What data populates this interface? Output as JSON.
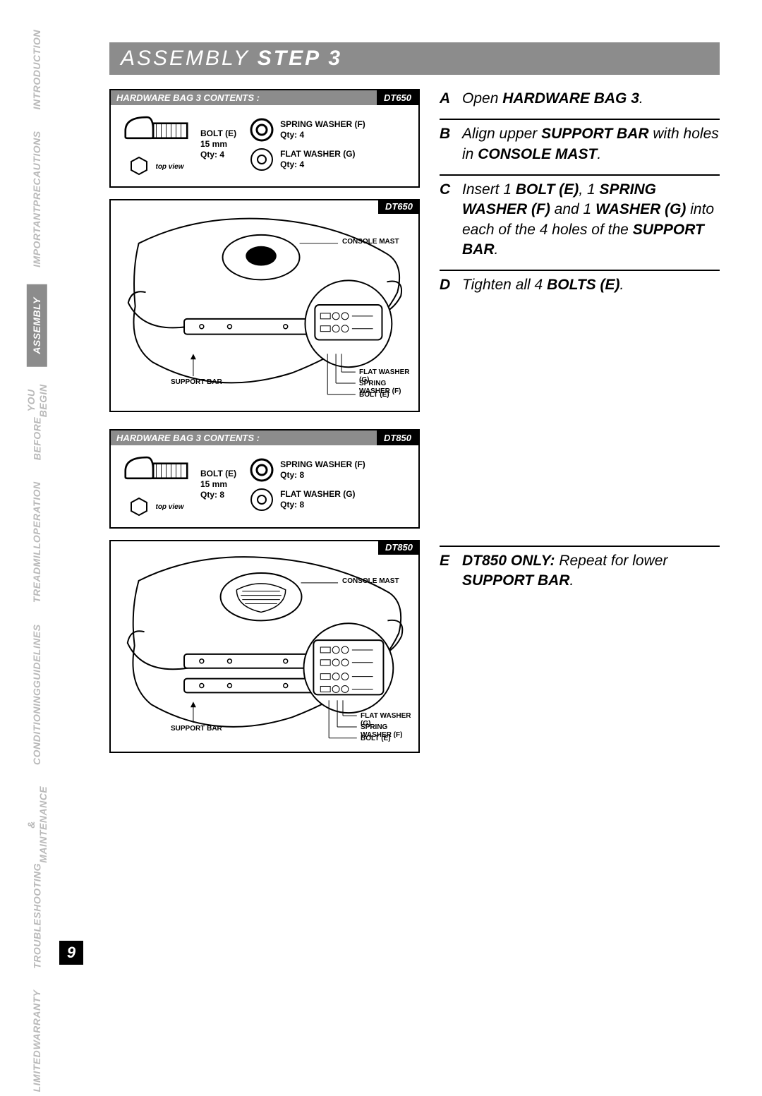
{
  "sidebar": {
    "items": [
      {
        "label": "INTRODUCTION",
        "active": false
      },
      {
        "label": "IMPORTANT\nPRECAUTIONS",
        "active": false
      },
      {
        "label": "ASSEMBLY",
        "active": true
      },
      {
        "label": "BEFORE\nYOU BEGIN",
        "active": false
      },
      {
        "label": "TREADMILL\nOPERATION",
        "active": false
      },
      {
        "label": "CONDITIONING\nGUIDELINES",
        "active": false
      },
      {
        "label": "TROUBLESHOOTING\n& MAINTENANCE",
        "active": false
      },
      {
        "label": "LIMITED\nWARRANTY",
        "active": false
      }
    ]
  },
  "page_number": "9",
  "title": {
    "prefix": "ASSEMBLY ",
    "bold": "STEP 3"
  },
  "hardware_boxes": [
    {
      "header": "HARDWARE BAG 3 CONTENTS :",
      "model": "DT650",
      "bolt": {
        "name": "BOLT (E)",
        "size": "15 mm",
        "qty": "Qty: 4",
        "topview": "top view"
      },
      "spring_washer": {
        "name": "SPRING WASHER (F)",
        "qty": "Qty: 4"
      },
      "flat_washer": {
        "name": "FLAT WASHER (G)",
        "qty": "Qty: 4"
      }
    },
    {
      "header": "HARDWARE BAG 3 CONTENTS :",
      "model": "DT850",
      "bolt": {
        "name": "BOLT (E)",
        "size": "15 mm",
        "qty": "Qty: 8",
        "topview": "top view"
      },
      "spring_washer": {
        "name": "SPRING WASHER (F)",
        "qty": "Qty: 8"
      },
      "flat_washer": {
        "name": "FLAT WASHER (G)",
        "qty": "Qty: 8"
      }
    }
  ],
  "diagrams": [
    {
      "model": "DT650",
      "labels": {
        "console_mast": "CONSOLE MAST",
        "support_bar": "SUPPORT BAR",
        "flat_washer": "FLAT WASHER (G)",
        "spring_washer": "SPRING WASHER (F)",
        "bolt": "BOLT (E)"
      }
    },
    {
      "model": "DT850",
      "labels": {
        "console_mast": "CONSOLE MAST",
        "support_bar": "SUPPORT BAR",
        "flat_washer": "FLAT WASHER (G)",
        "spring_washer": "SPRING WASHER (F)",
        "bolt": "BOLT (E)"
      }
    }
  ],
  "instructions_top": [
    {
      "letter": "A",
      "html": "Open <b>HARDWARE BAG 3</b>."
    },
    {
      "letter": "B",
      "html": "Align upper <b>SUPPORT BAR</b> with holes in <b>CONSOLE MAST</b>."
    },
    {
      "letter": "C",
      "html": "Insert 1 <b>BOLT (E)</b>, 1 <b>SPRING WASHER (F)</b> and 1 <b>WASHER (G)</b> into each of the 4 holes of the <b>SUPPORT BAR</b>."
    },
    {
      "letter": "D",
      "html": "Tighten all 4 <b>BOLTS (E)</b>."
    }
  ],
  "instructions_bottom": [
    {
      "letter": "E",
      "html": "<b>DT850 ONLY:</b> Repeat for lower <b>SUPPORT BAR</b>."
    }
  ],
  "colors": {
    "grey": "#8c8c8c",
    "light_grey": "#b9b9b9",
    "black": "#000000",
    "white": "#ffffff"
  }
}
